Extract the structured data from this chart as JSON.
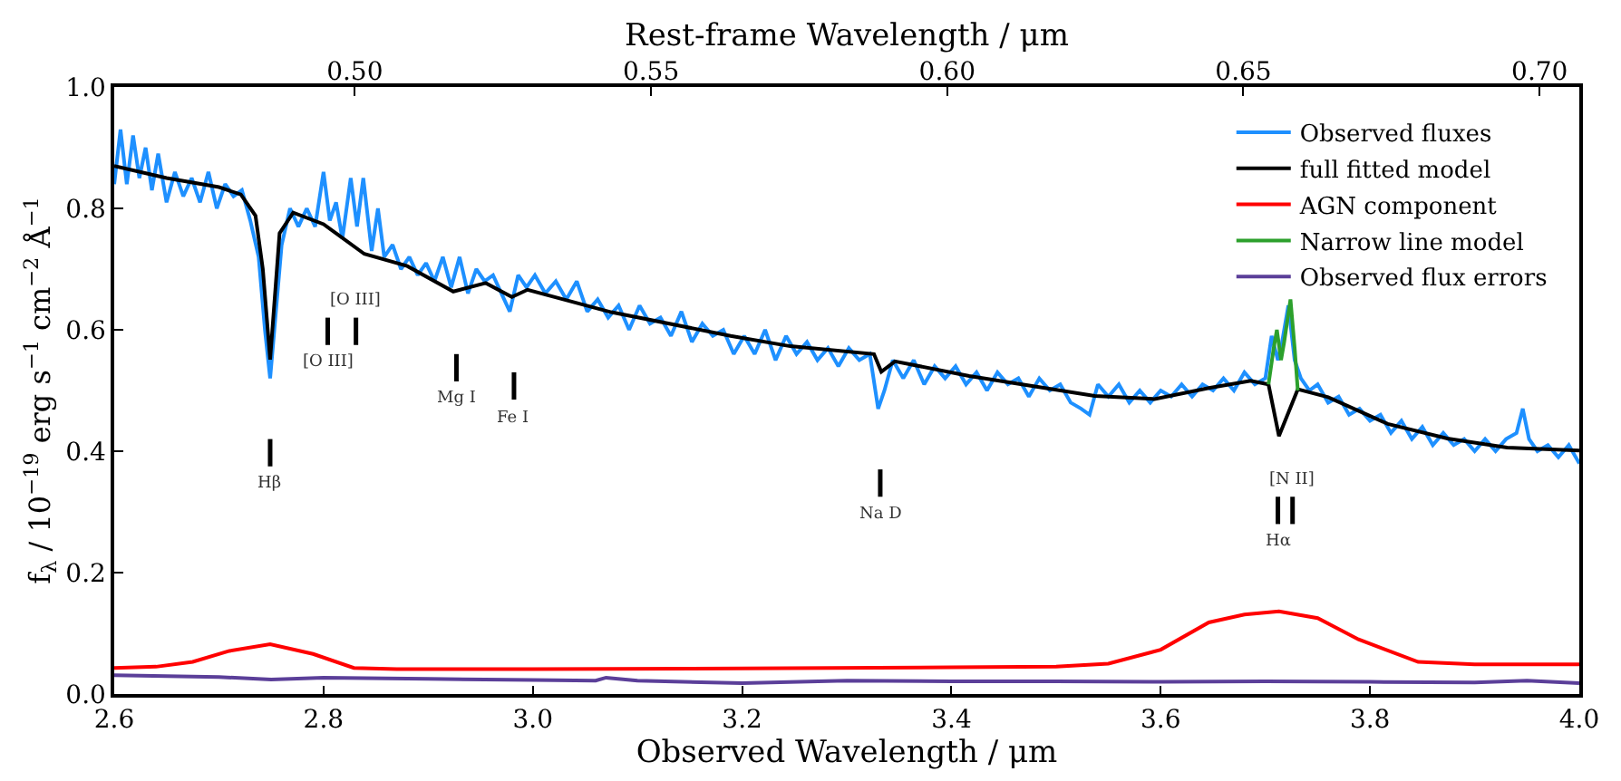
{
  "chart_data": {
    "type": "line",
    "xlabel": "Observed Wavelength / μm",
    "x2label": "Rest-frame Wavelength / μm",
    "ylabel": "f$_{λ}$ / 10$^{−19}$ erg s$^{−1}$ cm$^{−2}$ Å$^{−1}$",
    "xlim": [
      2.6,
      4.0
    ],
    "xticks": [
      {
        "value": 2.6,
        "label": "2.6"
      },
      {
        "value": 2.8,
        "label": "2.8"
      },
      {
        "value": 3.0,
        "label": "3.0"
      },
      {
        "value": 3.2,
        "label": "3.2"
      },
      {
        "value": 3.4,
        "label": "3.4"
      },
      {
        "value": 3.6,
        "label": "3.6"
      },
      {
        "value": 3.8,
        "label": "3.8"
      },
      {
        "value": 4.0,
        "label": "4.0"
      }
    ],
    "x2lim": [
      0.4594,
      0.7067
    ],
    "x2ticks": [
      {
        "value": 0.5,
        "label": "0.50"
      },
      {
        "value": 0.55,
        "label": "0.55"
      },
      {
        "value": 0.6,
        "label": "0.60"
      },
      {
        "value": 0.65,
        "label": "0.65"
      },
      {
        "value": 0.7,
        "label": "0.70"
      }
    ],
    "ylim": [
      0.0,
      1.0
    ],
    "yticks": [
      {
        "value": 0.0,
        "label": "0.0"
      },
      {
        "value": 0.2,
        "label": "0.2"
      },
      {
        "value": 0.4,
        "label": "0.4"
      },
      {
        "value": 0.6,
        "label": "0.6"
      },
      {
        "value": 0.8,
        "label": "0.8"
      },
      {
        "value": 1.0,
        "label": "1.0"
      }
    ],
    "legend": "top right",
    "series": [
      {
        "name": "Observed fluxes",
        "color": "#1e90ff",
        "x": [
          2.6,
          2.606,
          2.612,
          2.618,
          2.624,
          2.63,
          2.636,
          2.642,
          2.65,
          2.658,
          2.666,
          2.674,
          2.682,
          2.69,
          2.698,
          2.706,
          2.714,
          2.722,
          2.73,
          2.738,
          2.744,
          2.749,
          2.754,
          2.76,
          2.768,
          2.776,
          2.784,
          2.792,
          2.8,
          2.806,
          2.812,
          2.818,
          2.826,
          2.832,
          2.838,
          2.846,
          2.852,
          2.858,
          2.866,
          2.874,
          2.882,
          2.89,
          2.898,
          2.906,
          2.914,
          2.922,
          2.93,
          2.938,
          2.946,
          2.954,
          2.962,
          2.97,
          2.978,
          2.986,
          2.994,
          3.002,
          3.012,
          3.022,
          3.032,
          3.042,
          3.052,
          3.062,
          3.072,
          3.082,
          3.092,
          3.102,
          3.112,
          3.122,
          3.132,
          3.142,
          3.152,
          3.162,
          3.172,
          3.182,
          3.192,
          3.202,
          3.212,
          3.222,
          3.232,
          3.242,
          3.252,
          3.262,
          3.272,
          3.282,
          3.292,
          3.302,
          3.312,
          3.322,
          3.33,
          3.336,
          3.344,
          3.354,
          3.364,
          3.374,
          3.384,
          3.394,
          3.404,
          3.414,
          3.424,
          3.434,
          3.444,
          3.454,
          3.464,
          3.474,
          3.484,
          3.494,
          3.504,
          3.514,
          3.524,
          3.532,
          3.54,
          3.55,
          3.56,
          3.57,
          3.58,
          3.59,
          3.6,
          3.61,
          3.62,
          3.63,
          3.64,
          3.65,
          3.66,
          3.67,
          3.68,
          3.69,
          3.7,
          3.706,
          3.712,
          3.716,
          3.722,
          3.728,
          3.734,
          3.742,
          3.75,
          3.76,
          3.77,
          3.78,
          3.79,
          3.8,
          3.81,
          3.82,
          3.83,
          3.84,
          3.85,
          3.86,
          3.87,
          3.88,
          3.89,
          3.9,
          3.91,
          3.92,
          3.93,
          3.94,
          3.946,
          3.952,
          3.96,
          3.97,
          3.98,
          3.99,
          4.0
        ],
        "values": [
          0.84,
          0.93,
          0.84,
          0.92,
          0.85,
          0.9,
          0.83,
          0.89,
          0.81,
          0.86,
          0.82,
          0.85,
          0.81,
          0.86,
          0.8,
          0.84,
          0.82,
          0.83,
          0.78,
          0.72,
          0.6,
          0.52,
          0.62,
          0.74,
          0.8,
          0.77,
          0.8,
          0.77,
          0.86,
          0.78,
          0.81,
          0.75,
          0.85,
          0.77,
          0.85,
          0.73,
          0.8,
          0.72,
          0.74,
          0.7,
          0.72,
          0.69,
          0.71,
          0.68,
          0.72,
          0.67,
          0.72,
          0.66,
          0.7,
          0.68,
          0.69,
          0.66,
          0.63,
          0.69,
          0.67,
          0.69,
          0.66,
          0.68,
          0.65,
          0.68,
          0.63,
          0.65,
          0.62,
          0.64,
          0.6,
          0.64,
          0.61,
          0.62,
          0.59,
          0.63,
          0.58,
          0.61,
          0.59,
          0.6,
          0.56,
          0.59,
          0.56,
          0.6,
          0.55,
          0.59,
          0.56,
          0.58,
          0.55,
          0.57,
          0.54,
          0.57,
          0.55,
          0.56,
          0.47,
          0.5,
          0.55,
          0.52,
          0.55,
          0.51,
          0.54,
          0.52,
          0.54,
          0.51,
          0.53,
          0.5,
          0.53,
          0.51,
          0.52,
          0.49,
          0.52,
          0.5,
          0.51,
          0.48,
          0.47,
          0.46,
          0.51,
          0.49,
          0.51,
          0.48,
          0.5,
          0.48,
          0.5,
          0.49,
          0.51,
          0.49,
          0.51,
          0.5,
          0.52,
          0.5,
          0.53,
          0.51,
          0.52,
          0.59,
          0.55,
          0.58,
          0.64,
          0.55,
          0.52,
          0.5,
          0.51,
          0.48,
          0.49,
          0.46,
          0.47,
          0.45,
          0.46,
          0.43,
          0.45,
          0.42,
          0.44,
          0.41,
          0.43,
          0.41,
          0.42,
          0.4,
          0.42,
          0.4,
          0.42,
          0.43,
          0.47,
          0.42,
          0.4,
          0.41,
          0.39,
          0.41,
          0.38
        ]
      },
      {
        "name": "full fitted model",
        "color": "#000000",
        "x": [
          2.6,
          2.65,
          2.7,
          2.721,
          2.735,
          2.742,
          2.749,
          2.758,
          2.771,
          2.8,
          2.839,
          2.88,
          2.924,
          2.955,
          2.98,
          2.995,
          3.075,
          3.189,
          3.246,
          3.326,
          3.333,
          3.346,
          3.417,
          3.537,
          3.594,
          3.646,
          3.686,
          3.703,
          3.713,
          3.731,
          3.76,
          3.817,
          3.874,
          3.931,
          4.0
        ],
        "values": [
          0.87,
          0.85,
          0.835,
          0.823,
          0.788,
          0.7,
          0.551,
          0.759,
          0.793,
          0.774,
          0.725,
          0.705,
          0.663,
          0.677,
          0.654,
          0.666,
          0.629,
          0.59,
          0.573,
          0.56,
          0.531,
          0.548,
          0.524,
          0.491,
          0.486,
          0.504,
          0.516,
          0.51,
          0.425,
          0.502,
          0.489,
          0.445,
          0.421,
          0.406,
          0.401
        ]
      },
      {
        "name": "AGN component",
        "color": "#ff0000",
        "x": [
          2.6,
          2.64,
          2.675,
          2.71,
          2.749,
          2.79,
          2.829,
          2.87,
          3.0,
          3.2,
          3.4,
          3.5,
          3.55,
          3.6,
          3.646,
          3.68,
          3.713,
          3.75,
          3.789,
          3.846,
          3.9,
          4.0
        ],
        "values": [
          0.043,
          0.045,
          0.053,
          0.071,
          0.082,
          0.066,
          0.043,
          0.041,
          0.041,
          0.042,
          0.044,
          0.045,
          0.05,
          0.073,
          0.118,
          0.131,
          0.136,
          0.125,
          0.09,
          0.053,
          0.049,
          0.049
        ]
      },
      {
        "name": "Narrow line model",
        "color": "#2ca02c",
        "x": [
          3.703,
          3.708,
          3.711,
          3.715,
          3.718,
          3.724,
          3.728,
          3.731
        ],
        "values": [
          0.51,
          0.57,
          0.6,
          0.55,
          0.58,
          0.65,
          0.57,
          0.5
        ]
      },
      {
        "name": "Observed flux errors",
        "color": "#5b3f99",
        "x": [
          2.6,
          2.7,
          2.75,
          2.8,
          2.9,
          3.0,
          3.06,
          3.07,
          3.1,
          3.2,
          3.3,
          3.4,
          3.5,
          3.6,
          3.7,
          3.8,
          3.9,
          3.95,
          4.0
        ],
        "values": [
          0.031,
          0.028,
          0.024,
          0.027,
          0.025,
          0.023,
          0.022,
          0.027,
          0.022,
          0.018,
          0.022,
          0.021,
          0.021,
          0.02,
          0.021,
          0.02,
          0.019,
          0.022,
          0.018
        ]
      }
    ],
    "annotations": [
      {
        "text": "Hβ",
        "x": 2.749
      },
      {
        "text": "[O III]",
        "x": 2.804
      },
      {
        "text": "[O III]",
        "x": 2.831
      },
      {
        "text": "Mg I",
        "x": 2.927
      },
      {
        "text": "Fe I",
        "x": 2.982
      },
      {
        "text": "Na D",
        "x": 3.332
      },
      {
        "text": "Hα",
        "x": 3.712
      },
      {
        "text": "[N II]",
        "x": 3.726
      }
    ]
  }
}
